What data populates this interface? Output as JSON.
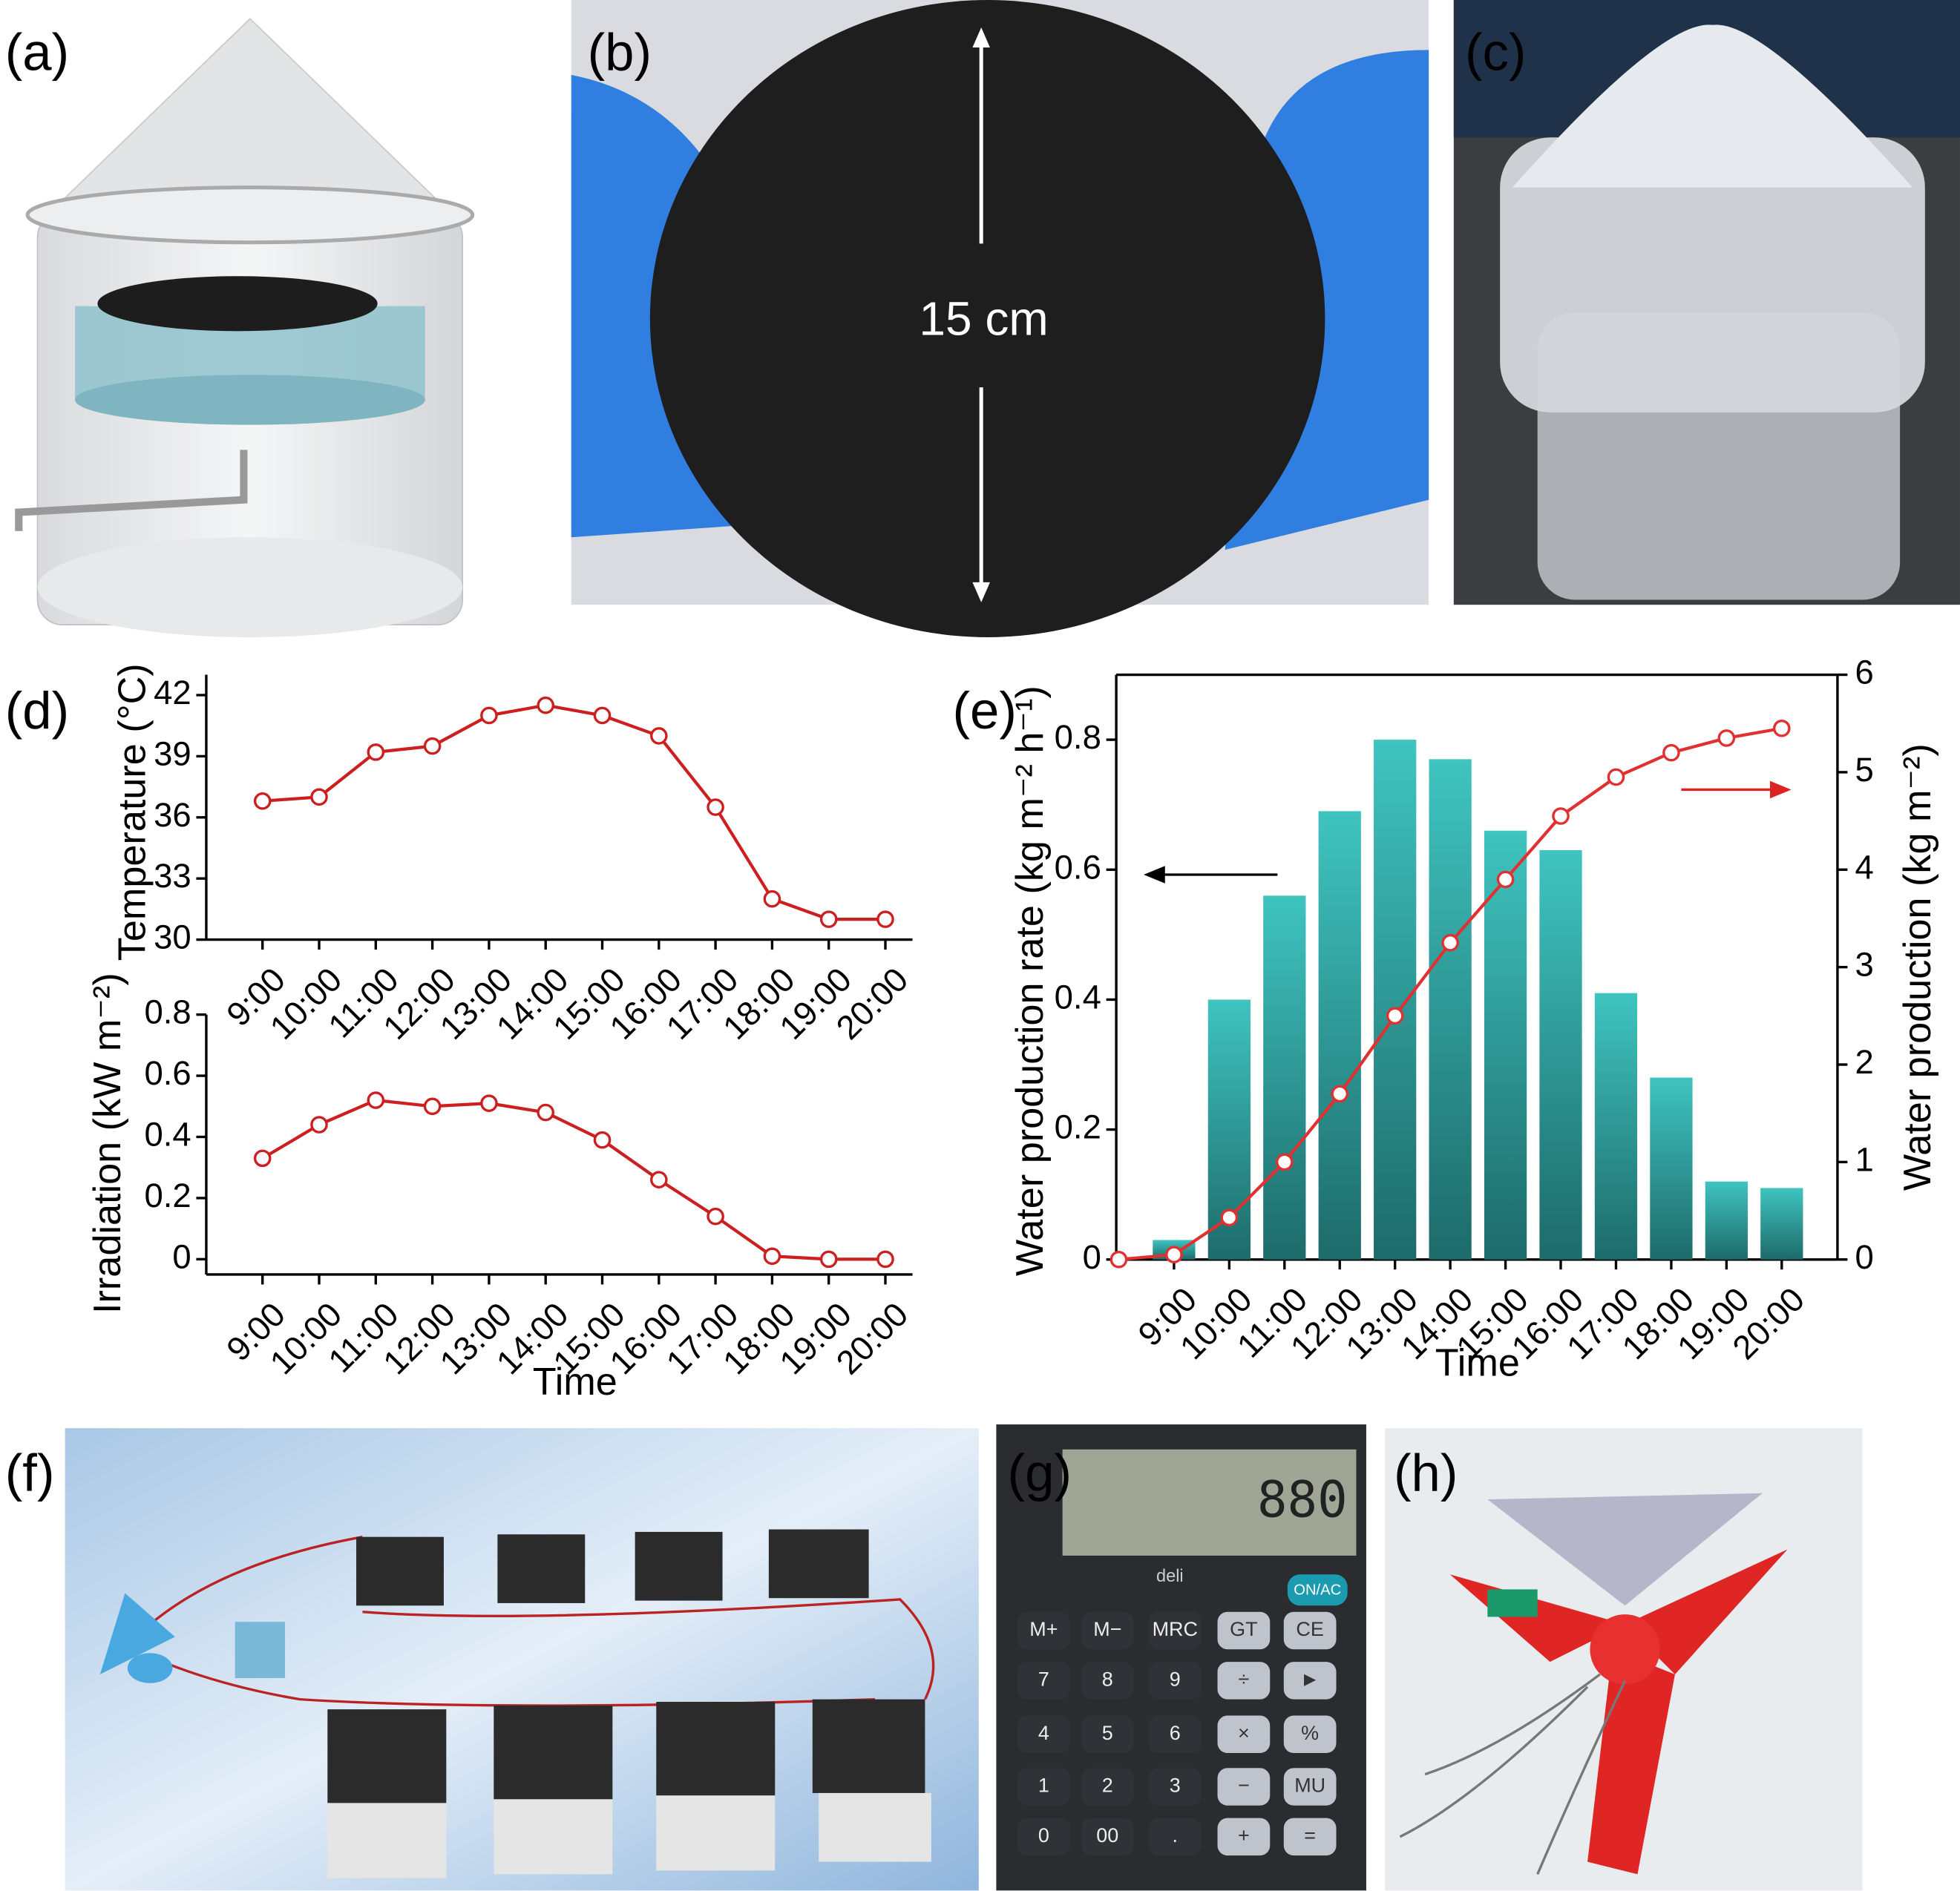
{
  "panels": [
    "(a)",
    "(b)",
    "(c)",
    "(d)",
    "(e)",
    "(f)",
    "(g)",
    "(h)"
  ],
  "photo_b_annotation": "15 cm",
  "calculator": {
    "display": "880",
    "brand": "deli",
    "keys": [
      [
        "M+",
        "M−",
        "MRC",
        "GT",
        "CE"
      ],
      [
        "7",
        "8",
        "9",
        "÷",
        "►"
      ],
      [
        "4",
        "5",
        "6",
        "×",
        "%"
      ],
      [
        "1",
        "2",
        "3",
        "−",
        "MU"
      ],
      [
        "0",
        "00",
        ".",
        "+",
        "="
      ]
    ],
    "power_key": "ON/AC"
  },
  "chart_data": [
    {
      "type": "line",
      "ylabel": "Temperature (°C)",
      "categories": [
        "9:00",
        "10:00",
        "11:00",
        "12:00",
        "13:00",
        "14:00",
        "15:00",
        "16:00",
        "17:00",
        "18:00",
        "19:00",
        "20:00"
      ],
      "values": [
        36.8,
        37.0,
        39.2,
        39.5,
        41.0,
        41.5,
        41.0,
        40.0,
        36.5,
        32.0,
        31.0,
        31.0
      ],
      "color": "#cc1f1f",
      "ylim": [
        30,
        43
      ],
      "yticks": [
        30,
        33,
        36,
        39,
        42
      ]
    },
    {
      "type": "line",
      "ylabel": "Irradiation (kW m⁻²)",
      "xlabel": "Time",
      "categories": [
        "9:00",
        "10:00",
        "11:00",
        "12:00",
        "13:00",
        "14:00",
        "15:00",
        "16:00",
        "17:00",
        "18:00",
        "19:00",
        "20:00"
      ],
      "values": [
        0.33,
        0.44,
        0.52,
        0.5,
        0.51,
        0.48,
        0.39,
        0.26,
        0.14,
        0.01,
        0.0,
        0.0
      ],
      "color": "#cc1f1f",
      "ylim": [
        -0.05,
        0.8
      ],
      "yticks": [
        0,
        0.2,
        0.4,
        0.6,
        0.8
      ]
    },
    {
      "type": "bar",
      "ylabel": "Water production rate (kg m⁻² h⁻¹)",
      "y2label": "Water production (kg m⁻²)",
      "xlabel": "Time",
      "categories": [
        null,
        "9:00",
        "10:00",
        "11:00",
        "12:00",
        "13:00",
        "14:00",
        "15:00",
        "16:00",
        "17:00",
        "18:00",
        "19:00",
        "20:00"
      ],
      "series": [
        {
          "type": "bar",
          "color": "#2a9d9a",
          "values": [
            null,
            0.03,
            0.4,
            0.56,
            0.69,
            0.8,
            0.77,
            0.66,
            0.63,
            0.41,
            0.28,
            0.12,
            0.11
          ]
        },
        {
          "type": "line",
          "color": "#e03030",
          "axis": "y2",
          "values": [
            0,
            0.05,
            0.43,
            1.0,
            1.7,
            2.5,
            3.25,
            3.9,
            4.55,
            4.95,
            5.2,
            5.35,
            5.45
          ]
        }
      ],
      "ylim": [
        0,
        0.9
      ],
      "yticks": [
        0,
        0.2,
        0.4,
        0.6,
        0.8
      ],
      "y2lim": [
        0,
        6
      ],
      "y2ticks": [
        0,
        1,
        2,
        3,
        4,
        5,
        6
      ]
    }
  ]
}
